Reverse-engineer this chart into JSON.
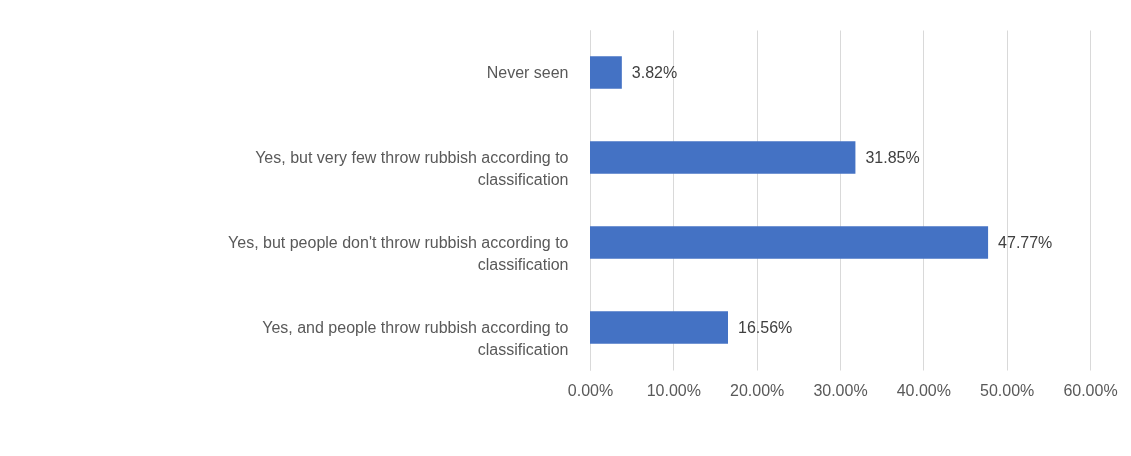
{
  "chart_data": {
    "type": "bar",
    "orientation": "horizontal",
    "categories": [
      "Never seen",
      "Yes, but very few throw rubbish according to classification",
      "Yes, but people don't throw rubbish according to classification",
      "Yes, and people throw rubbish according to classification"
    ],
    "values": [
      3.82,
      31.85,
      47.77,
      16.56
    ],
    "value_labels": [
      "3.82%",
      "31.85%",
      "47.77%",
      "16.56%"
    ],
    "color": "#4472c4",
    "xlim": [
      0,
      60
    ],
    "xticks": [
      {
        "value": 0,
        "label": "0.00%"
      },
      {
        "value": 10,
        "label": "10.00%"
      },
      {
        "value": 20,
        "label": "20.00%"
      },
      {
        "value": 30,
        "label": "30.00%"
      },
      {
        "value": 40,
        "label": "40.00%"
      },
      {
        "value": 50,
        "label": "50.00%"
      },
      {
        "value": 60,
        "label": "60.00%"
      }
    ],
    "grid": "x"
  }
}
